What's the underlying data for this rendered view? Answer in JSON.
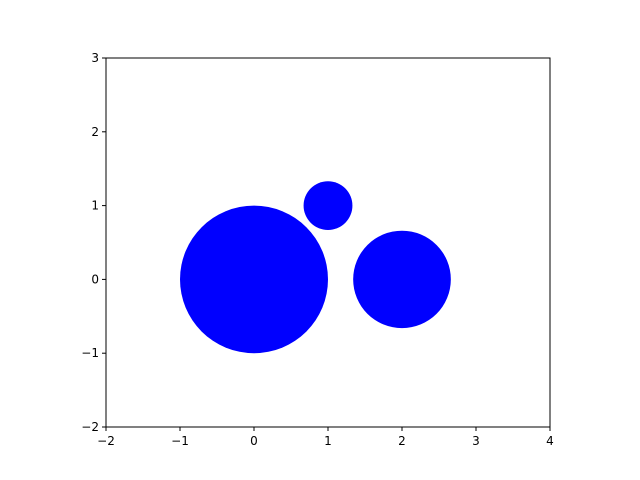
{
  "chart_data": {
    "type": "scatter",
    "title": "",
    "xlabel": "",
    "ylabel": "",
    "xlim": [
      -2,
      4
    ],
    "ylim": [
      -2,
      3
    ],
    "xticks": [
      -2,
      -1,
      0,
      1,
      2,
      3,
      4
    ],
    "yticks": [
      -2,
      -1,
      0,
      1,
      2,
      3
    ],
    "grid": false,
    "series": [
      {
        "marker": "circle",
        "color": "#0000ff",
        "circles": [
          {
            "x": 0,
            "y": 0,
            "r": 1.0
          },
          {
            "x": 1,
            "y": 1,
            "r": 0.33
          },
          {
            "x": 2,
            "y": 0,
            "r": 0.66
          }
        ]
      }
    ]
  }
}
